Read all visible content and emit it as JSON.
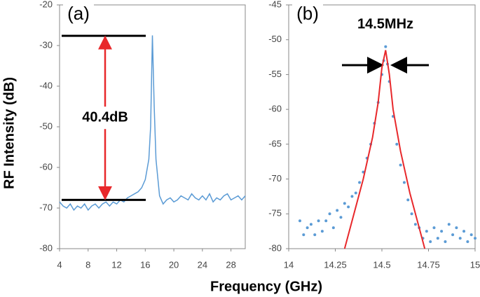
{
  "ylabel": "RF Intensity (dB)",
  "xlabel": "Frequency (GHz)",
  "chart_data": [
    {
      "type": "line",
      "panel_label": "(a)",
      "annotation": "40.4dB",
      "levels": [
        -27.6,
        -68
      ],
      "xlim": [
        4,
        30
      ],
      "xticks": [
        4,
        8,
        12,
        16,
        20,
        24,
        28
      ],
      "ylim": [
        -80,
        -20
      ],
      "yticks": [
        -80,
        -70,
        -60,
        -50,
        -40,
        -30,
        -20
      ],
      "x": [
        4,
        4.5,
        5,
        5.5,
        6,
        6.5,
        7,
        7.5,
        8,
        8.5,
        9,
        9.5,
        10,
        10.5,
        11,
        11.5,
        12,
        12.5,
        13,
        13.5,
        14,
        14.5,
        15,
        15.5,
        16,
        16.5,
        16.75,
        17,
        17.25,
        17.5,
        18,
        18.5,
        19,
        19.5,
        20,
        20.5,
        21,
        21.5,
        22,
        22.5,
        23,
        23.5,
        24,
        24.5,
        25,
        25.5,
        26,
        26.5,
        27,
        27.5,
        28,
        28.5,
        29,
        29.5,
        30
      ],
      "series": [
        {
          "color": "#5b9bd5",
          "values": [
            -68.5,
            -69.5,
            -70,
            -69,
            -70.5,
            -69.5,
            -70,
            -69,
            -70.5,
            -69.5,
            -69,
            -70,
            -69,
            -68.5,
            -69.5,
            -68.5,
            -69,
            -68,
            -68.5,
            -67.5,
            -67,
            -66.5,
            -66,
            -65,
            -63,
            -58,
            -50,
            -27.5,
            -45,
            -58,
            -67,
            -69,
            -68,
            -67.5,
            -68.5,
            -68,
            -67,
            -67.5,
            -68,
            -66.5,
            -67.5,
            -68,
            -67,
            -68,
            -66.5,
            -68.5,
            -67.5,
            -68,
            -67,
            -66.5,
            -68,
            -67.5,
            -67,
            -68,
            -67
          ]
        }
      ]
    },
    {
      "type": "scatter",
      "panel_label": "(b)",
      "annotation": "14.5MHz",
      "xlim": [
        14,
        15
      ],
      "xticks": [
        14,
        14.25,
        14.5,
        14.75,
        15
      ],
      "ylim": [
        -80,
        -45
      ],
      "yticks": [
        -80,
        -75,
        -70,
        -65,
        -60,
        -55,
        -50,
        -45
      ],
      "x": [
        14.06,
        14.08,
        14.1,
        14.12,
        14.14,
        14.16,
        14.18,
        14.2,
        14.22,
        14.24,
        14.26,
        14.28,
        14.3,
        14.32,
        14.34,
        14.36,
        14.38,
        14.4,
        14.42,
        14.44,
        14.46,
        14.48,
        14.5,
        14.51,
        14.52,
        14.53,
        14.54,
        14.56,
        14.58,
        14.6,
        14.62,
        14.64,
        14.66,
        14.68,
        14.7,
        14.72,
        14.74,
        14.76,
        14.78,
        14.8,
        14.82,
        14.84,
        14.86,
        14.88,
        14.9,
        14.92,
        14.94,
        14.96,
        14.98,
        15
      ],
      "series": [
        {
          "color": "#5b9bd5",
          "values": [
            -76,
            -78,
            -77,
            -76.5,
            -78,
            -76,
            -77.5,
            -76,
            -75,
            -77,
            -74.5,
            -75.5,
            -73.5,
            -74,
            -72.5,
            -72,
            -70.5,
            -69,
            -67,
            -65,
            -62,
            -59,
            -55,
            -53,
            -51,
            -53.5,
            -56,
            -61,
            -65,
            -68,
            -70.5,
            -73,
            -75,
            -76.5,
            -77,
            -78.5,
            -77.5,
            -79,
            -77,
            -78.5,
            -77.5,
            -79,
            -76.5,
            -78,
            -77,
            -78.5,
            -77.5,
            -79,
            -78,
            -78.5
          ]
        }
      ],
      "fit": {
        "color": "#e8282b",
        "x": [
          14.3,
          14.4,
          14.45,
          14.48,
          14.5,
          14.52,
          14.54,
          14.56,
          14.6,
          14.65,
          14.7,
          14.73
        ],
        "values": [
          -80,
          -70,
          -64,
          -59,
          -54,
          -51.5,
          -55,
          -60,
          -66,
          -72,
          -77,
          -80
        ]
      }
    }
  ]
}
